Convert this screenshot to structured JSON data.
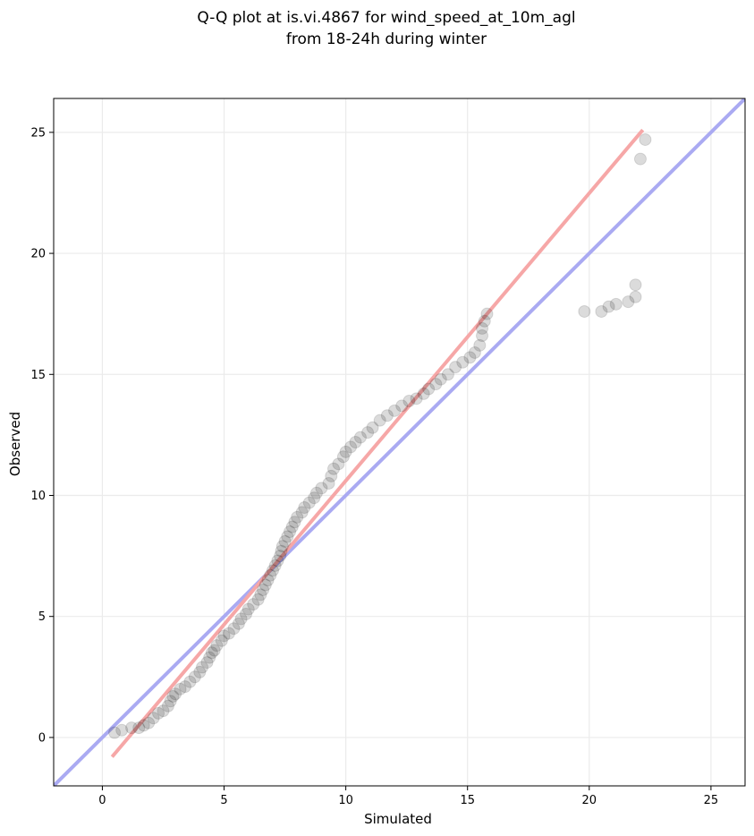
{
  "chart_data": {
    "type": "scatter",
    "title_lines": [
      "Q-Q plot at is.vi.4867 for wind_speed_at_10m_agl",
      "from 18-24h during winter"
    ],
    "xlabel": "Simulated",
    "ylabel": "Observed",
    "xlim": [
      -2,
      26.4
    ],
    "ylim": [
      -2,
      26.4
    ],
    "x_ticks": [
      0,
      5,
      10,
      15,
      20,
      25
    ],
    "y_ticks": [
      0,
      5,
      10,
      15,
      20,
      25
    ],
    "grid": true,
    "colors": {
      "points": "#000000",
      "identity_line": "#aaaaf2",
      "fit_line": "#f6a7a7",
      "grid": "#ebebeb"
    },
    "reference_lines": [
      {
        "kind": "identity",
        "x": [
          -2,
          26.4
        ],
        "y": [
          -2,
          26.4
        ]
      },
      {
        "kind": "fit",
        "x": [
          0.4,
          22.2
        ],
        "y": [
          -0.8,
          25.1
        ]
      }
    ],
    "points": [
      [
        0.5,
        0.2
      ],
      [
        0.8,
        0.3
      ],
      [
        1.2,
        0.4
      ],
      [
        1.5,
        0.4
      ],
      [
        1.7,
        0.5
      ],
      [
        1.9,
        0.6
      ],
      [
        2.1,
        0.8
      ],
      [
        2.3,
        1.0
      ],
      [
        2.5,
        1.1
      ],
      [
        2.7,
        1.3
      ],
      [
        2.8,
        1.5
      ],
      [
        2.9,
        1.7
      ],
      [
        3.0,
        1.8
      ],
      [
        3.2,
        2.0
      ],
      [
        3.4,
        2.1
      ],
      [
        3.6,
        2.3
      ],
      [
        3.8,
        2.5
      ],
      [
        4.0,
        2.7
      ],
      [
        4.1,
        2.9
      ],
      [
        4.3,
        3.1
      ],
      [
        4.4,
        3.3
      ],
      [
        4.5,
        3.5
      ],
      [
        4.6,
        3.6
      ],
      [
        4.7,
        3.8
      ],
      [
        4.9,
        4.0
      ],
      [
        5.0,
        4.2
      ],
      [
        5.2,
        4.3
      ],
      [
        5.4,
        4.5
      ],
      [
        5.6,
        4.7
      ],
      [
        5.7,
        4.9
      ],
      [
        5.9,
        5.1
      ],
      [
        6.0,
        5.3
      ],
      [
        6.2,
        5.5
      ],
      [
        6.4,
        5.7
      ],
      [
        6.5,
        5.9
      ],
      [
        6.6,
        6.1
      ],
      [
        6.7,
        6.3
      ],
      [
        6.8,
        6.5
      ],
      [
        6.9,
        6.7
      ],
      [
        7.0,
        6.9
      ],
      [
        7.1,
        7.1
      ],
      [
        7.2,
        7.3
      ],
      [
        7.3,
        7.5
      ],
      [
        7.35,
        7.7
      ],
      [
        7.4,
        7.9
      ],
      [
        7.5,
        8.1
      ],
      [
        7.6,
        8.3
      ],
      [
        7.7,
        8.5
      ],
      [
        7.8,
        8.7
      ],
      [
        7.9,
        8.9
      ],
      [
        8.0,
        9.1
      ],
      [
        8.2,
        9.3
      ],
      [
        8.3,
        9.5
      ],
      [
        8.5,
        9.7
      ],
      [
        8.7,
        9.9
      ],
      [
        8.8,
        10.1
      ],
      [
        9.0,
        10.3
      ],
      [
        9.3,
        10.5
      ],
      [
        9.4,
        10.8
      ],
      [
        9.5,
        11.1
      ],
      [
        9.7,
        11.3
      ],
      [
        9.9,
        11.6
      ],
      [
        10.0,
        11.8
      ],
      [
        10.2,
        12.0
      ],
      [
        10.4,
        12.2
      ],
      [
        10.6,
        12.4
      ],
      [
        10.9,
        12.6
      ],
      [
        11.1,
        12.8
      ],
      [
        11.4,
        13.1
      ],
      [
        11.7,
        13.3
      ],
      [
        12.0,
        13.5
      ],
      [
        12.3,
        13.7
      ],
      [
        12.6,
        13.9
      ],
      [
        12.9,
        14.0
      ],
      [
        13.2,
        14.2
      ],
      [
        13.4,
        14.4
      ],
      [
        13.7,
        14.6
      ],
      [
        13.9,
        14.8
      ],
      [
        14.2,
        15.0
      ],
      [
        14.5,
        15.3
      ],
      [
        14.8,
        15.5
      ],
      [
        15.1,
        15.7
      ],
      [
        15.3,
        15.9
      ],
      [
        15.5,
        16.2
      ],
      [
        15.6,
        16.6
      ],
      [
        15.6,
        16.9
      ],
      [
        15.7,
        17.2
      ],
      [
        15.8,
        17.5
      ],
      [
        19.8,
        17.6
      ],
      [
        20.5,
        17.6
      ],
      [
        20.8,
        17.8
      ],
      [
        21.1,
        17.9
      ],
      [
        21.6,
        18.0
      ],
      [
        21.9,
        18.2
      ],
      [
        21.9,
        18.7
      ],
      [
        22.1,
        23.9
      ],
      [
        22.3,
        24.7
      ]
    ]
  }
}
